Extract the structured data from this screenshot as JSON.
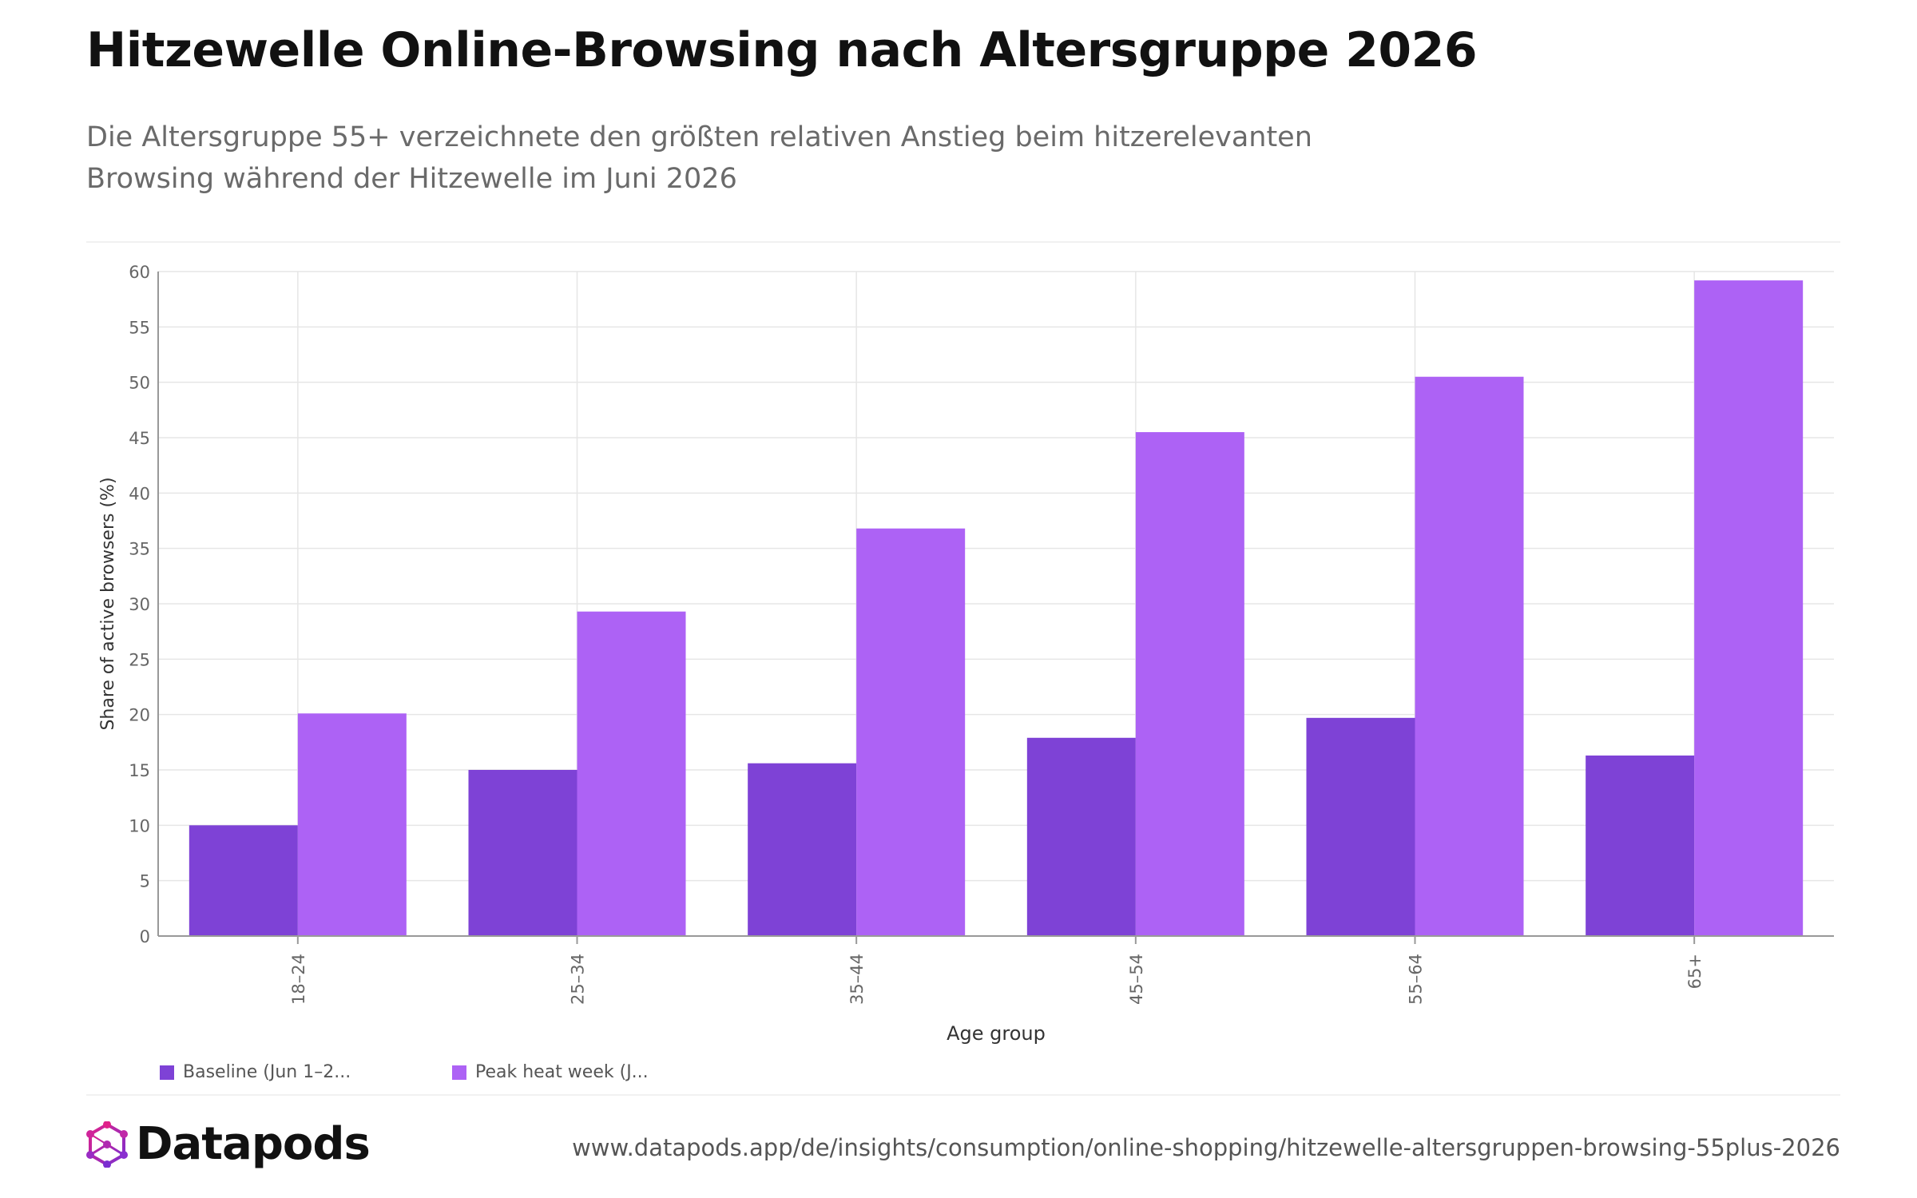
{
  "header": {
    "title": "Hitzewelle Online-Browsing nach Altersgruppe 2026",
    "subtitle": "Die Altersgruppe 55+ verzeichnete den größten relativen Anstieg beim hitzerelevanten Browsing während der Hitzewelle im Juni 2026"
  },
  "chart_data": {
    "type": "bar",
    "categories": [
      "18–24",
      "25–34",
      "35–44",
      "45–54",
      "55–64",
      "65+"
    ],
    "series": [
      {
        "name": "Baseline (Jun 1–2...",
        "color": "#7e42d6",
        "values": [
          10.0,
          15.0,
          15.6,
          17.9,
          19.7,
          16.3
        ]
      },
      {
        "name": "Peak heat week (J...",
        "color": "#ad62f5",
        "values": [
          20.1,
          29.3,
          36.8,
          45.5,
          50.5,
          59.2
        ]
      }
    ],
    "xlabel": "Age group",
    "ylabel": "Share of active browsers (%)",
    "ylim": [
      0,
      60
    ],
    "yticks": [
      0,
      5,
      10,
      15,
      20,
      25,
      30,
      35,
      40,
      45,
      50,
      55,
      60
    ],
    "grid": true,
    "legend_position": "bottom-left"
  },
  "footer": {
    "brand": "Datapods",
    "url": "www.datapods.app/de/insights/consumption/online-shopping/hitzewelle-altersgruppen-browsing-55plus-2026",
    "brand_colors": [
      "#e0218a",
      "#7b2fd0"
    ]
  }
}
